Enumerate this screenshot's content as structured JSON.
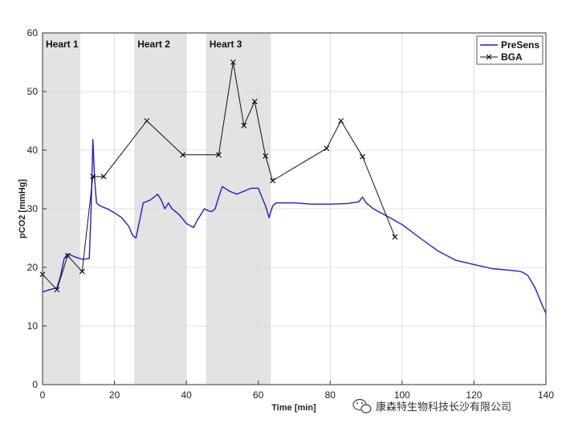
{
  "chart_data": {
    "type": "line",
    "title": "",
    "xlabel": "Time [min]",
    "ylabel": "pCO2 [mmHg]",
    "xlim": [
      0,
      140
    ],
    "ylim": [
      0,
      60
    ],
    "xticks": [
      0,
      20,
      40,
      60,
      80,
      100,
      120,
      140
    ],
    "yticks": [
      0,
      10,
      20,
      30,
      40,
      50,
      60
    ],
    "grid": true,
    "legend": "top-right",
    "regions": [
      {
        "label": "Heart 1",
        "x0": 0,
        "x1": 10.5
      },
      {
        "label": "Heart 2",
        "x0": 25.5,
        "x1": 40
      },
      {
        "label": "Heart 3",
        "x0": 45.5,
        "x1": 63.5
      }
    ],
    "series": [
      {
        "name": "PreSens",
        "color": "#1f1fd0",
        "marker": "none",
        "x": [
          0,
          2,
          4,
          5,
          6,
          7,
          9,
          11,
          13,
          13.5,
          14,
          14.5,
          15,
          16,
          18,
          20,
          22,
          24,
          25,
          26,
          27,
          28,
          30,
          32,
          33,
          34,
          35,
          36,
          37,
          38,
          40,
          42,
          43,
          44,
          45,
          46,
          47,
          48,
          49,
          50,
          52,
          54,
          56,
          58,
          60,
          61,
          62,
          63,
          64,
          65,
          70,
          75,
          80,
          85,
          88,
          89,
          90,
          92,
          95,
          98,
          100,
          105,
          110,
          115,
          120,
          125,
          130,
          133,
          134,
          135,
          137,
          139,
          140
        ],
        "y": [
          15.8,
          16.2,
          16.5,
          18.5,
          21.5,
          22.3,
          21.8,
          21.4,
          21.5,
          30,
          41.8,
          35,
          31,
          30.5,
          30,
          29.3,
          28.5,
          27,
          25.5,
          25,
          28,
          31,
          31.5,
          32.5,
          31.5,
          30,
          31,
          30,
          29.5,
          29,
          27.5,
          26.8,
          28,
          29,
          30,
          29.7,
          29.5,
          30,
          32,
          33.8,
          33,
          32.5,
          33,
          33.5,
          33.5,
          32,
          30.5,
          28.5,
          30.5,
          31,
          31,
          30.8,
          30.8,
          30.9,
          31.2,
          32,
          31,
          30,
          29,
          28,
          27.3,
          25,
          22.8,
          21.2,
          20.5,
          19.8,
          19.5,
          19.3,
          19.0,
          18.6,
          16.5,
          13.5,
          12.2
        ]
      },
      {
        "name": "BGA",
        "color": "#111111",
        "marker": "x",
        "x": [
          0,
          4,
          7,
          11,
          14,
          17,
          29,
          39,
          49,
          53,
          56,
          59,
          62,
          64,
          79,
          83,
          89,
          98
        ],
        "y": [
          18.8,
          16.2,
          22,
          19.3,
          35.5,
          35.5,
          45,
          39.2,
          39.2,
          55,
          44.2,
          48.3,
          39,
          34.8,
          40.3,
          45,
          38.9,
          25.2
        ]
      }
    ]
  },
  "watermark": {
    "icon": "wechat-logo-icon",
    "text": "康森特生物科技长沙有限公司"
  }
}
